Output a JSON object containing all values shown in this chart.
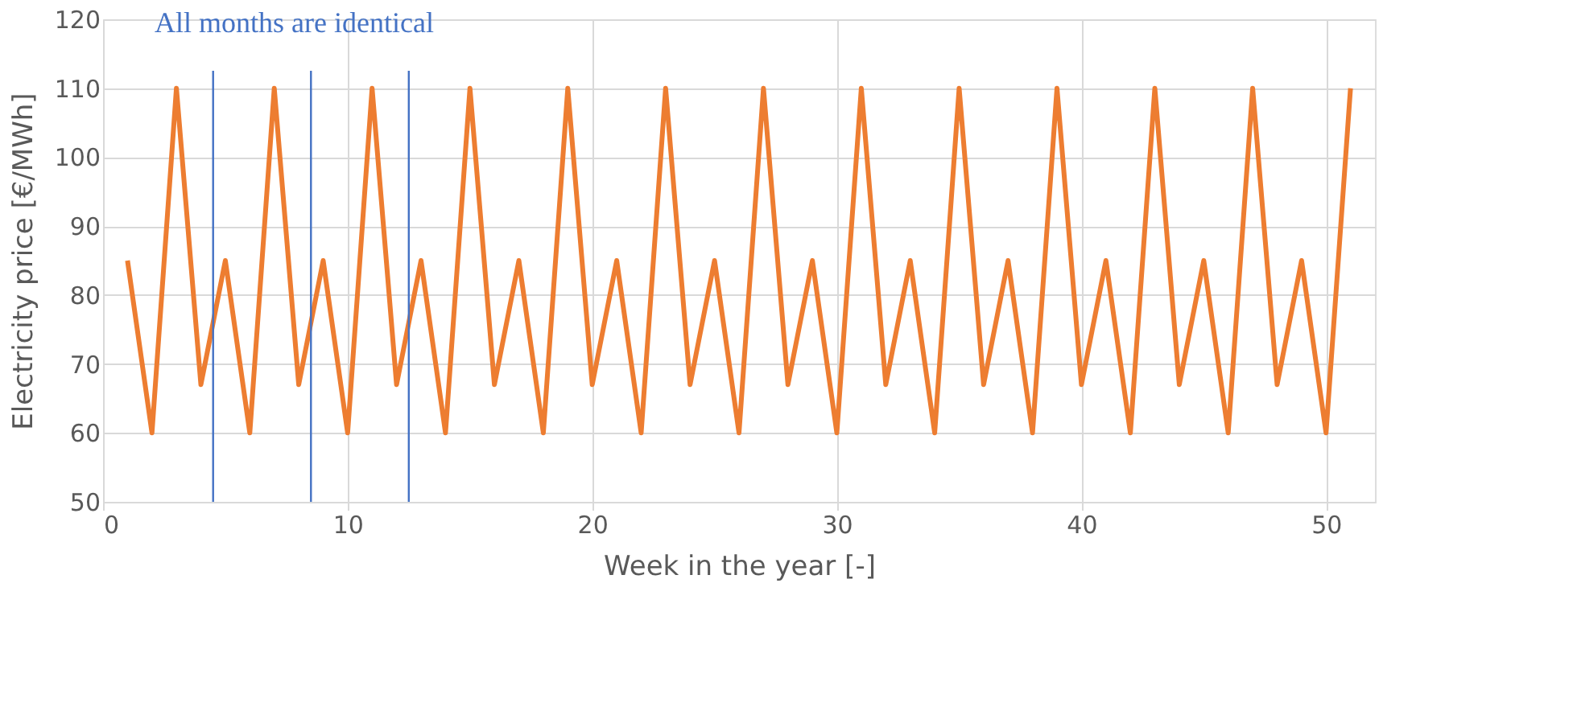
{
  "chart_data": {
    "type": "line",
    "xlabel": "Week in the year [-]",
    "ylabel": "Electricity price [€/MWh]",
    "x": [
      1,
      2,
      3,
      4,
      5,
      6,
      7,
      8,
      9,
      10,
      11,
      12,
      13,
      14,
      15,
      16,
      17,
      18,
      19,
      20,
      21,
      22,
      23,
      24,
      25,
      26,
      27,
      28,
      29,
      30,
      31,
      32,
      33,
      34,
      35,
      36,
      37,
      38,
      39,
      40,
      41,
      42,
      43,
      44,
      45,
      46,
      47,
      48,
      49,
      50,
      51
    ],
    "series": [
      {
        "color": "#ed7d31",
        "values": [
          85,
          60,
          110,
          67,
          85,
          60,
          110,
          67,
          85,
          60,
          110,
          67,
          85,
          60,
          110,
          67,
          85,
          60,
          110,
          67,
          85,
          60,
          110,
          67,
          85,
          60,
          110,
          67,
          85,
          60,
          110,
          67,
          85,
          60,
          110,
          67,
          85,
          60,
          110,
          67,
          85,
          60,
          110,
          67,
          85,
          60,
          110,
          67,
          85,
          60,
          110
        ]
      }
    ],
    "xlim": [
      0,
      52
    ],
    "xticks": [
      0,
      10,
      20,
      30,
      40,
      50
    ],
    "ylim": [
      50,
      120
    ],
    "yticks": [
      50,
      60,
      70,
      80,
      90,
      100,
      110,
      120
    ],
    "grid": true,
    "marker": "none",
    "line_style": "solid",
    "ref_lines": [
      {
        "axis": "x",
        "value": 4.5,
        "color": "#4472c4"
      },
      {
        "axis": "x",
        "value": 8.5,
        "color": "#4472c4"
      },
      {
        "axis": "x",
        "value": 12.5,
        "color": "#4472c4"
      }
    ],
    "annotations": [
      "All months are identical"
    ]
  }
}
